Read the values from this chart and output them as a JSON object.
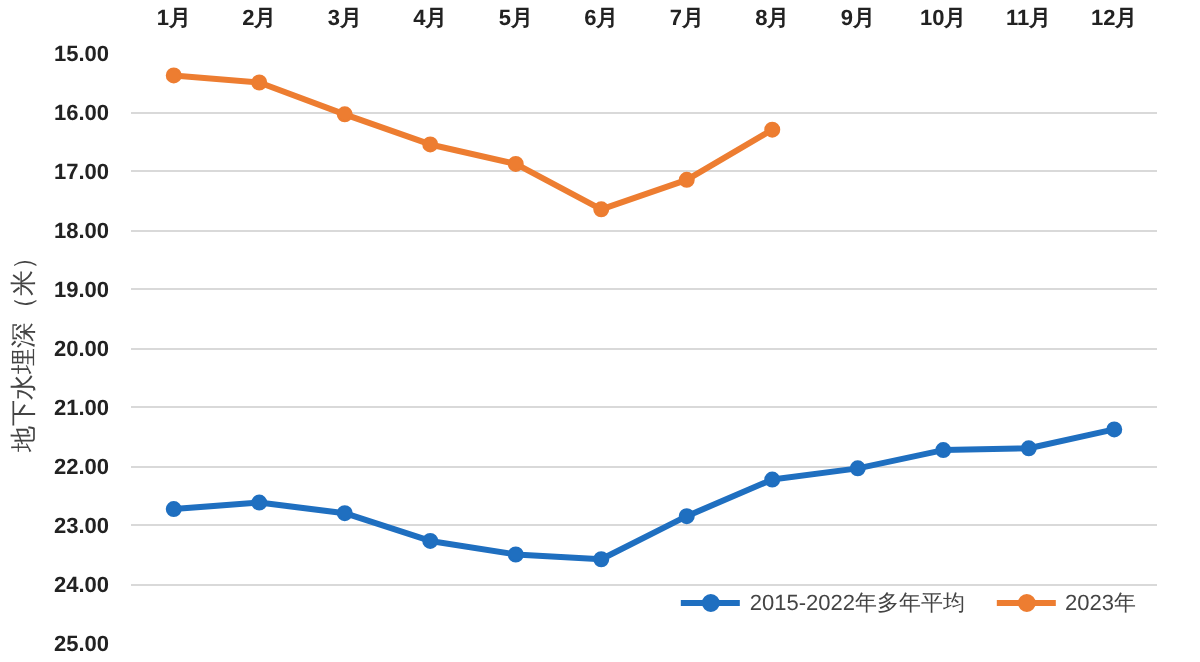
{
  "chart_data": {
    "type": "line",
    "ylabel": "地下水埋深（米）",
    "categories": [
      "1月",
      "2月",
      "3月",
      "4月",
      "5月",
      "6月",
      "7月",
      "8月",
      "9月",
      "10月",
      "11月",
      "12月"
    ],
    "series": [
      {
        "name": "2015-2022年多年平均",
        "color": "#1f6fc0",
        "values": [
          22.73,
          22.62,
          22.8,
          23.27,
          23.5,
          23.58,
          22.85,
          22.23,
          22.04,
          21.73,
          21.7,
          21.38
        ]
      },
      {
        "name": "2023年",
        "color": "#ed7d31",
        "values": [
          15.38,
          15.5,
          16.04,
          16.55,
          16.88,
          17.65,
          17.15,
          16.3,
          null,
          null,
          null,
          null
        ]
      }
    ],
    "ylim": [
      25,
      15
    ],
    "yticks": [
      {
        "value": 15,
        "label": "15.00"
      },
      {
        "value": 16,
        "label": "16.00"
      },
      {
        "value": 17,
        "label": "17.00"
      },
      {
        "value": 18,
        "label": "18.00"
      },
      {
        "value": 19,
        "label": "19.00"
      },
      {
        "value": 20,
        "label": "20.00"
      },
      {
        "value": 21,
        "label": "21.00"
      },
      {
        "value": 22,
        "label": "22.00"
      },
      {
        "value": 23,
        "label": "23.00"
      },
      {
        "value": 24,
        "label": "24.00"
      },
      {
        "value": 25,
        "label": "25.00"
      }
    ],
    "grid": "y",
    "legend": "bottom right",
    "marker": "circle",
    "line_style": "solid"
  }
}
